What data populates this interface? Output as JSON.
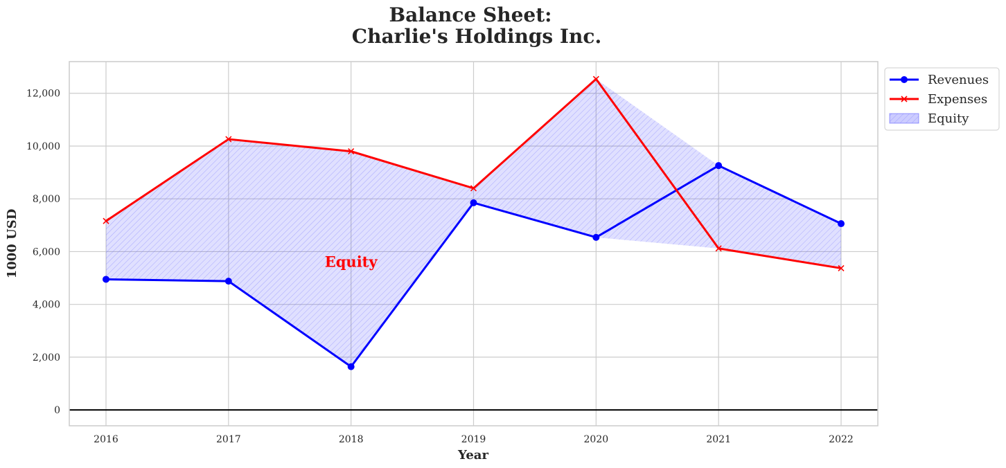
{
  "chart_data": {
    "type": "line",
    "title_lines": [
      "Balance Sheet:",
      "Charlie's Holdings Inc."
    ],
    "xlabel": "Year",
    "ylabel": "1000 USD",
    "x": [
      "2016",
      "2017",
      "2018",
      "2019",
      "2020",
      "2021",
      "2022"
    ],
    "ylim": [
      -600,
      13200
    ],
    "yticks": [
      0,
      2000,
      4000,
      6000,
      8000,
      10000,
      12000
    ],
    "ytick_labels": [
      "0",
      "2,000",
      "4,000",
      "6,000",
      "8,000",
      "10,000",
      "12,000"
    ],
    "grid": true,
    "legend_position": "outside-top-right",
    "series": [
      {
        "name": "Revenues",
        "color": "#0000ff",
        "marker": "circle",
        "values": [
          4950,
          4880,
          1640,
          7850,
          6540,
          9260,
          7060
        ]
      },
      {
        "name": "Expenses",
        "color": "#ff0000",
        "marker": "x",
        "values": [
          7160,
          10260,
          9800,
          8400,
          12540,
          6120,
          5370
        ]
      }
    ],
    "fill": {
      "name": "Equity",
      "between": [
        "Revenues",
        "Expenses"
      ],
      "color": "#0000ff",
      "hatch": "diagonal"
    },
    "annotation": {
      "text": "Equity",
      "x": "2018",
      "y": 5600,
      "color": "#ff0000"
    },
    "baseline": {
      "y": 0,
      "color": "#000000"
    }
  }
}
